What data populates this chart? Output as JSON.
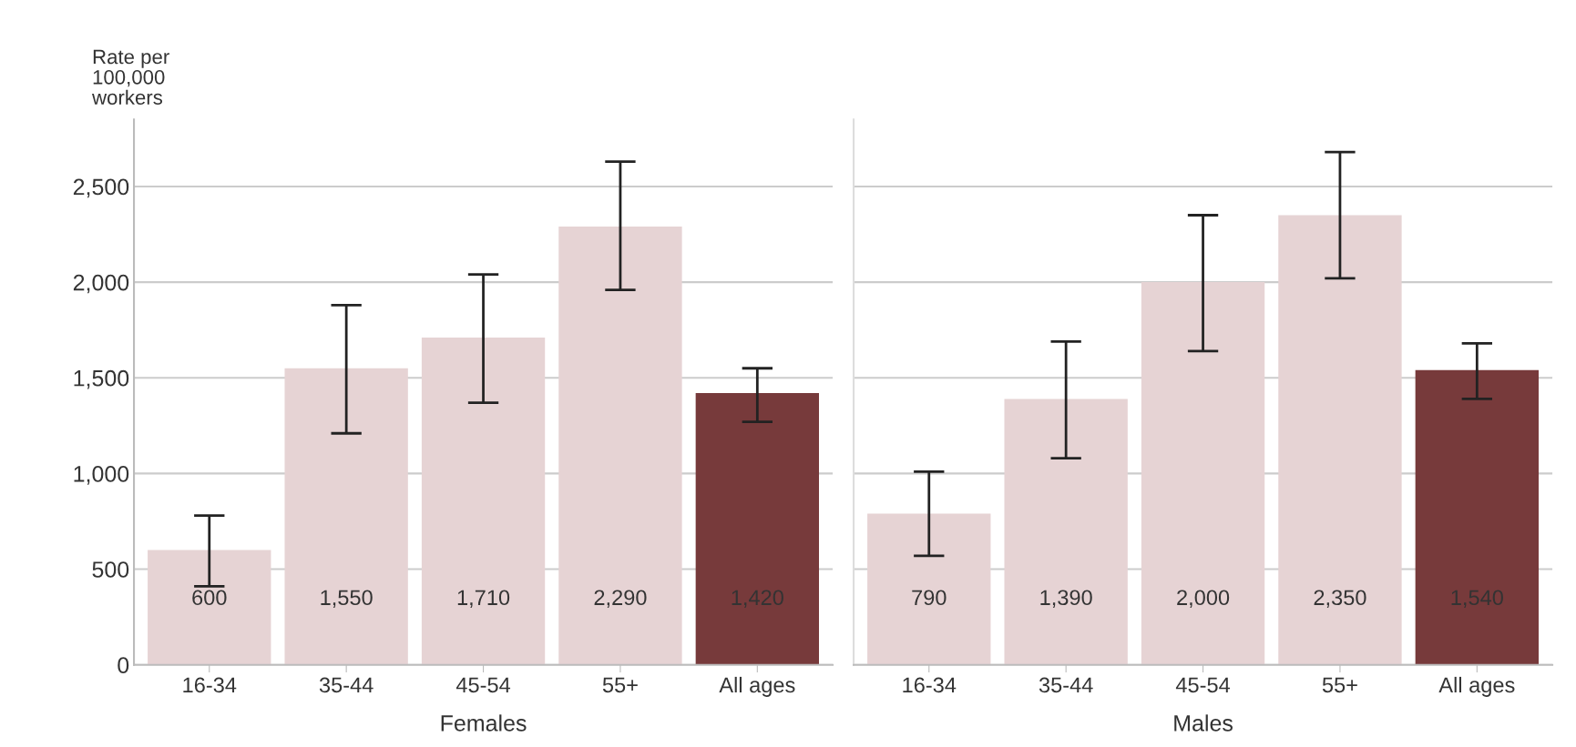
{
  "chart_data": [
    {
      "type": "bar",
      "ylabel": "Rate per\n100,000\nworkers",
      "xlabel": "Females",
      "categories": [
        "16-34",
        "35-44",
        "45-54",
        "55+",
        "All ages"
      ],
      "values": [
        600,
        1550,
        1710,
        2290,
        1420
      ],
      "colors": [
        "#e6d3d4",
        "#e6d3d4",
        "#e6d3d4",
        "#e6d3d4",
        "#773a3b"
      ],
      "errors": [
        [
          410,
          780
        ],
        [
          1210,
          1880
        ],
        [
          1370,
          2040
        ],
        [
          1960,
          2630
        ],
        [
          1270,
          1550
        ]
      ],
      "value_labels": [
        "600",
        "1,550",
        "1,710",
        "2,290",
        "1,420"
      ],
      "ylim": [
        0,
        2850
      ],
      "yticks": [
        0,
        500,
        {
          "value": 1000,
          "label": "1,000"
        },
        {
          "value": 1500,
          "label": "1,500"
        },
        {
          "value": 2000,
          "label": "2,000"
        },
        {
          "value": 2500,
          "label": "2,500"
        }
      ],
      "grid": "y"
    },
    {
      "type": "bar",
      "xlabel": "Males",
      "categories": [
        "16-34",
        "35-44",
        "45-54",
        "55+",
        "All ages"
      ],
      "values": [
        790,
        1390,
        2000,
        2350,
        1540
      ],
      "colors": [
        "#e6d3d4",
        "#e6d3d4",
        "#e6d3d4",
        "#e6d3d4",
        "#773a3b"
      ],
      "errors": [
        [
          570,
          1010
        ],
        [
          1080,
          1690
        ],
        [
          1640,
          2350
        ],
        [
          2020,
          2680
        ],
        [
          1390,
          1680
        ]
      ],
      "value_labels": [
        "790",
        "1,390",
        "2,000",
        "2,350",
        "1,540"
      ],
      "ylim": [
        0,
        2850
      ],
      "yticks": [
        {
          "value": 0,
          "label": null
        },
        {
          "value": 500,
          "label": null
        },
        {
          "value": 1000,
          "label": null
        },
        {
          "value": 1500,
          "label": null
        },
        {
          "value": 2000,
          "label": null
        },
        {
          "value": 2500,
          "label": null
        }
      ],
      "grid": "y",
      "tick_labels": "x"
    }
  ]
}
